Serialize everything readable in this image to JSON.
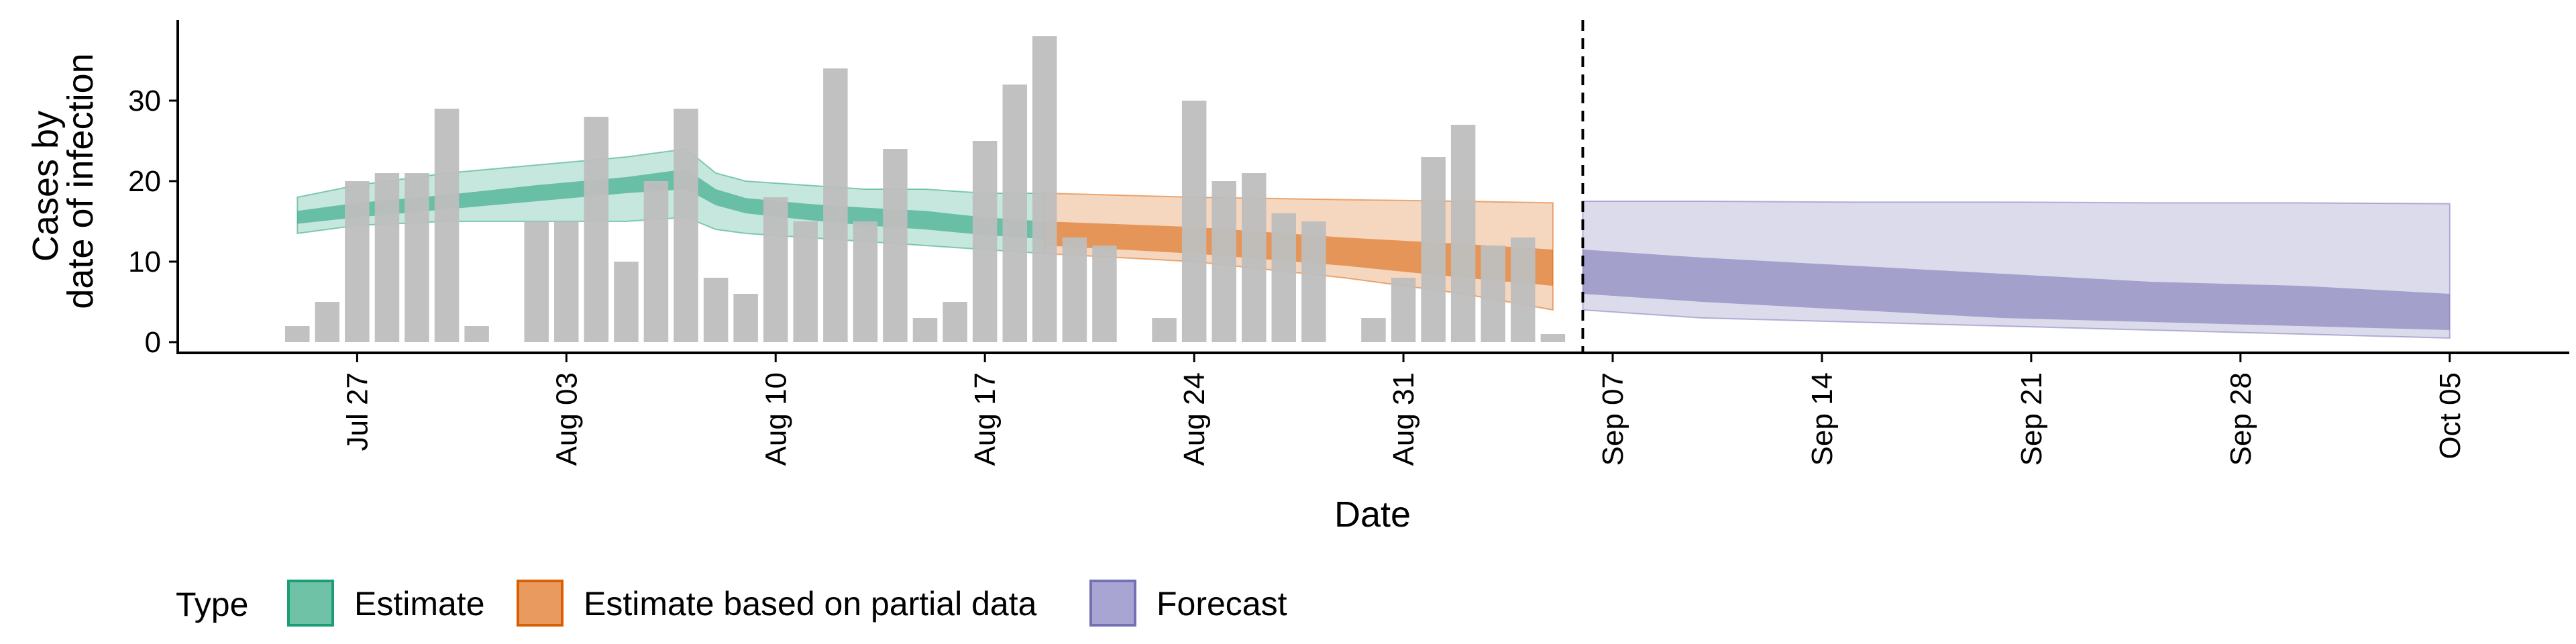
{
  "chart_data": {
    "type": "bar",
    "xlabel": "Date",
    "ylabel_lines": [
      "Cases by",
      "date of infection"
    ],
    "ylim": [
      0,
      40
    ],
    "y_ticks": [
      0,
      10,
      20,
      30
    ],
    "x_ticks": [
      {
        "date": "2020-07-27",
        "label": "Jul 27"
      },
      {
        "date": "2020-08-03",
        "label": "Aug 03"
      },
      {
        "date": "2020-08-10",
        "label": "Aug 10"
      },
      {
        "date": "2020-08-17",
        "label": "Aug 17"
      },
      {
        "date": "2020-08-24",
        "label": "Aug 24"
      },
      {
        "date": "2020-08-31",
        "label": "Aug 31"
      },
      {
        "date": "2020-09-07",
        "label": "Sep 07"
      },
      {
        "date": "2020-09-14",
        "label": "Sep 14"
      },
      {
        "date": "2020-09-21",
        "label": "Sep 21"
      },
      {
        "date": "2020-09-28",
        "label": "Sep 28"
      },
      {
        "date": "2020-10-05",
        "label": "Oct 05"
      }
    ],
    "x_range": [
      "2020-07-21",
      "2020-10-09"
    ],
    "forecast_start_date": "2020-09-06",
    "bars": {
      "color": "#bebebe",
      "values": [
        {
          "date": "2020-07-25",
          "value": 2
        },
        {
          "date": "2020-07-26",
          "value": 5
        },
        {
          "date": "2020-07-27",
          "value": 20
        },
        {
          "date": "2020-07-28",
          "value": 21
        },
        {
          "date": "2020-07-29",
          "value": 21
        },
        {
          "date": "2020-07-30",
          "value": 29
        },
        {
          "date": "2020-07-31",
          "value": 2
        },
        {
          "date": "2020-08-02",
          "value": 15
        },
        {
          "date": "2020-08-03",
          "value": 15
        },
        {
          "date": "2020-08-04",
          "value": 28
        },
        {
          "date": "2020-08-05",
          "value": 10
        },
        {
          "date": "2020-08-06",
          "value": 20
        },
        {
          "date": "2020-08-07",
          "value": 29
        },
        {
          "date": "2020-08-08",
          "value": 8
        },
        {
          "date": "2020-08-09",
          "value": 6
        },
        {
          "date": "2020-08-10",
          "value": 18
        },
        {
          "date": "2020-08-11",
          "value": 15
        },
        {
          "date": "2020-08-12",
          "value": 34
        },
        {
          "date": "2020-08-13",
          "value": 15
        },
        {
          "date": "2020-08-14",
          "value": 24
        },
        {
          "date": "2020-08-15",
          "value": 3
        },
        {
          "date": "2020-08-16",
          "value": 5
        },
        {
          "date": "2020-08-17",
          "value": 25
        },
        {
          "date": "2020-08-18",
          "value": 32
        },
        {
          "date": "2020-08-19",
          "value": 38
        },
        {
          "date": "2020-08-20",
          "value": 13
        },
        {
          "date": "2020-08-21",
          "value": 12
        },
        {
          "date": "2020-08-23",
          "value": 3
        },
        {
          "date": "2020-08-24",
          "value": 30
        },
        {
          "date": "2020-08-25",
          "value": 20
        },
        {
          "date": "2020-08-26",
          "value": 21
        },
        {
          "date": "2020-08-27",
          "value": 16
        },
        {
          "date": "2020-08-28",
          "value": 15
        },
        {
          "date": "2020-08-30",
          "value": 3
        },
        {
          "date": "2020-08-31",
          "value": 8
        },
        {
          "date": "2020-09-01",
          "value": 23
        },
        {
          "date": "2020-09-02",
          "value": 27
        },
        {
          "date": "2020-09-03",
          "value": 12
        },
        {
          "date": "2020-09-04",
          "value": 13
        },
        {
          "date": "2020-09-05",
          "value": 1
        }
      ]
    },
    "series": [
      {
        "name": "Estimate",
        "color": "#1b9e77",
        "dates": [
          "2020-07-25",
          "2020-07-27",
          "2020-07-30",
          "2020-08-02",
          "2020-08-05",
          "2020-08-07",
          "2020-08-08",
          "2020-08-09",
          "2020-08-11",
          "2020-08-13",
          "2020-08-15",
          "2020-08-17",
          "2020-08-19"
        ],
        "outer_low": [
          13.5,
          14.5,
          15,
          15,
          15,
          15.5,
          14,
          13.5,
          13,
          12.5,
          12,
          11.5,
          11
        ],
        "outer_high": [
          18,
          19.5,
          21,
          22,
          23,
          24,
          21,
          20,
          19.5,
          19,
          19,
          18.5,
          18.5
        ],
        "inner_low": [
          14.7,
          15.5,
          16.5,
          17.5,
          18.5,
          19,
          17,
          16,
          15.2,
          14.5,
          14,
          13.3,
          12.8
        ],
        "inner_high": [
          16.3,
          17.3,
          18.3,
          19.5,
          20.5,
          21.5,
          19,
          17.9,
          17.2,
          16.7,
          16.3,
          15.5,
          15
        ]
      },
      {
        "name": "Estimate based on partial data",
        "color": "#d95f02",
        "dates": [
          "2020-08-19",
          "2020-08-24",
          "2020-08-29",
          "2020-09-02",
          "2020-09-05"
        ],
        "outer_low": [
          11,
          10,
          8,
          6,
          4
        ],
        "outer_high": [
          18.5,
          18,
          17.7,
          17.5,
          17.3
        ],
        "inner_low": [
          12,
          11,
          9.5,
          8,
          7
        ],
        "inner_high": [
          15,
          14.3,
          13,
          12.2,
          11.5
        ]
      },
      {
        "name": "Forecast",
        "color": "#7570b3",
        "dates": [
          "2020-09-06",
          "2020-09-10",
          "2020-09-15",
          "2020-09-20",
          "2020-09-25",
          "2020-09-30",
          "2020-10-05"
        ],
        "outer_low": [
          4,
          3,
          2.5,
          2,
          1.5,
          1,
          0.5
        ],
        "outer_high": [
          17.5,
          17.5,
          17.4,
          17.4,
          17.3,
          17.3,
          17.2
        ],
        "inner_low": [
          6,
          5,
          4,
          3,
          2.5,
          2,
          1.5
        ],
        "inner_high": [
          11.5,
          10.5,
          9.5,
          8.5,
          7.5,
          7,
          6
        ]
      }
    ],
    "legend": {
      "title": "Type",
      "position": "bottom-left",
      "entries": [
        {
          "label": "Estimate",
          "fill": "#6fc2a5",
          "border": "#1b9e77"
        },
        {
          "label": "Estimate based on partial data",
          "fill": "#e89a5f",
          "border": "#d95f02"
        },
        {
          "label": "Forecast",
          "fill": "#a9a5d3",
          "border": "#7570b3"
        }
      ]
    }
  }
}
